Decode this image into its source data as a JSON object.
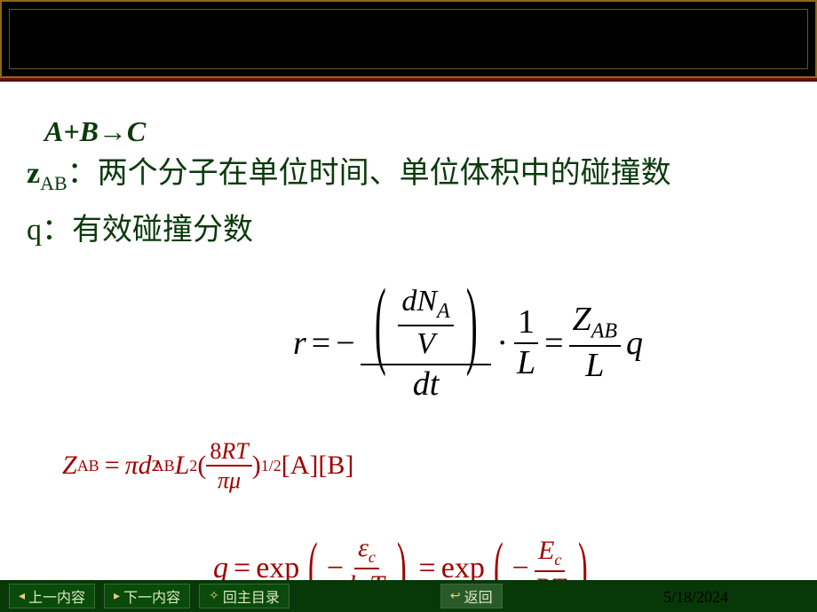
{
  "colors": {
    "header_bg": "#000000",
    "header_border": "#8b6914",
    "rule_top": "#7a1010",
    "text_green": "#0a3a0a",
    "eq_black": "#000000",
    "eq_red": "#a00000",
    "footer_bg": "#073807",
    "footer_text": "#d8e8c0"
  },
  "content": {
    "reaction": "A+B→C",
    "z_label_prefix": "z",
    "z_sub": "AB",
    "z_desc": "：两个分子在单位时间、单位体积中的碰撞数",
    "q_label": "q：有效碰撞分数"
  },
  "eq_r": {
    "lhs": "r",
    "eq": "=",
    "neg": "−",
    "inner_num_top_l": "dN",
    "inner_num_top_sub": "A",
    "inner_num_bot": "V",
    "dt": "dt",
    "dot": "·",
    "one": "1",
    "L": "L",
    "Z": "Z",
    "Zsub": "AB",
    "q": "q"
  },
  "eq_z": {
    "Z": "Z",
    "Zsub": "AB",
    "eq": "=",
    "pi": "π",
    "d": "d",
    "dsub": "AB",
    "sq": "2",
    "L": "L",
    "open": "(",
    "num": "8",
    "R": "R",
    "T": "T",
    "den_pi": "π",
    "den_mu": "μ",
    "close": ")",
    "half": "1/2",
    "A": "[A]",
    "B": "[B]"
  },
  "eq_q": {
    "q": "q",
    "eq": "=",
    "exp": "exp",
    "neg": "−",
    "eps": "ε",
    "eps_sub": "c",
    "k": "k",
    "k_sub": "B",
    "T": "T",
    "E": "E",
    "E_sub": "c",
    "R": "R"
  },
  "footer": {
    "prev_icon": "◂",
    "prev": "上一内容",
    "next_icon": "▸",
    "next": "下一内容",
    "toc_icon": "✧",
    "toc": "回主目录",
    "back_icon": "↩",
    "back": "返回",
    "date": "5/18/2024"
  }
}
